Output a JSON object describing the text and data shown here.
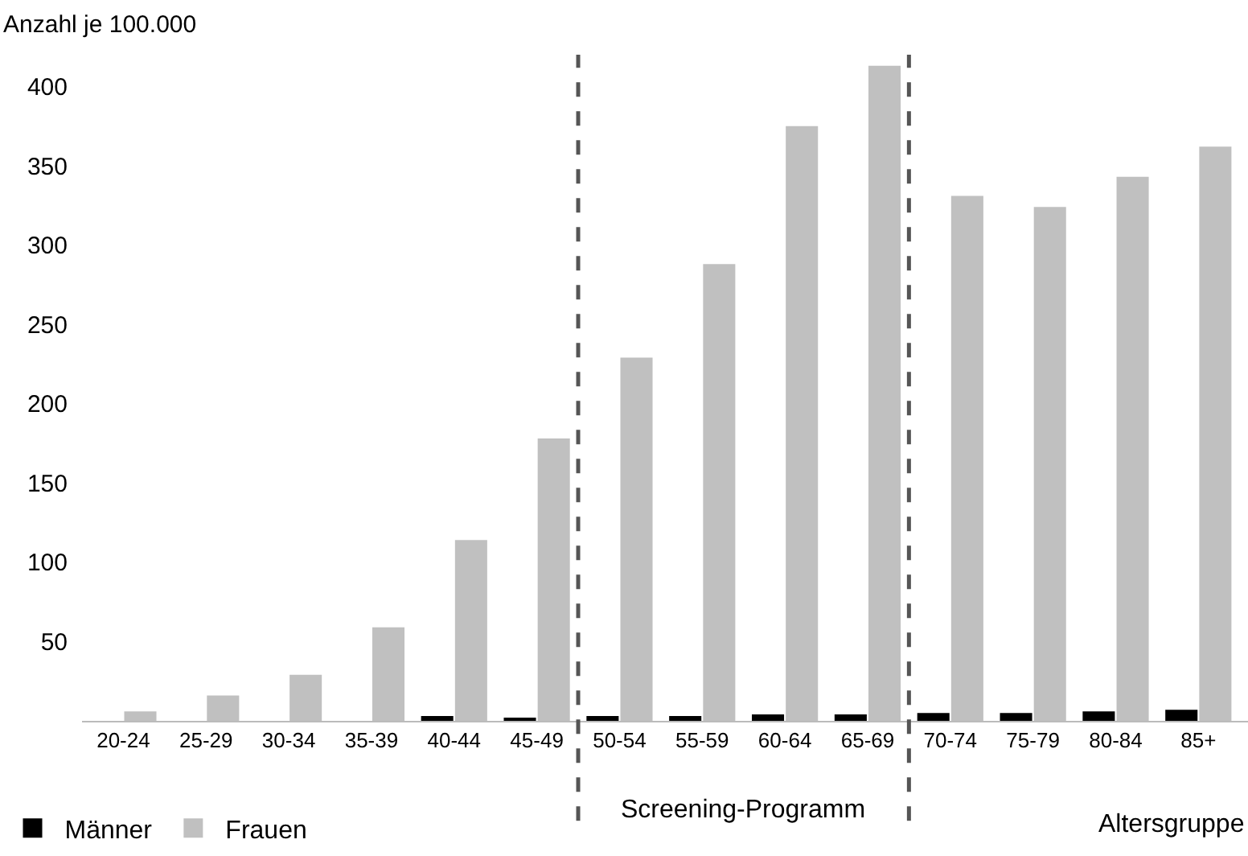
{
  "chart_data": {
    "type": "bar",
    "ylabel": "Anzahl je 100.000",
    "xlabel": "Altersgruppe",
    "categories": [
      "20-24",
      "25-29",
      "30-34",
      "35-39",
      "40-44",
      "45-49",
      "50-54",
      "55-59",
      "60-64",
      "65-69",
      "70-74",
      "75-79",
      "80-84",
      "85+"
    ],
    "series": [
      {
        "name": "Männer",
        "color": "#000000",
        "values": [
          null,
          null,
          null,
          null,
          3,
          2,
          3,
          3,
          4,
          4,
          5,
          5,
          6,
          7
        ]
      },
      {
        "name": "Frauen",
        "color": "#c0c0c0",
        "values": [
          6,
          16,
          29,
          59,
          114,
          178,
          229,
          288,
          375,
          413,
          331,
          324,
          343,
          362
        ]
      }
    ],
    "ylim": [
      0,
      420
    ],
    "yticks": [
      50,
      100,
      150,
      200,
      250,
      300,
      350,
      400
    ],
    "annotations": [
      "Screening-Programm"
    ],
    "legend": "bottom left",
    "grid": false
  }
}
